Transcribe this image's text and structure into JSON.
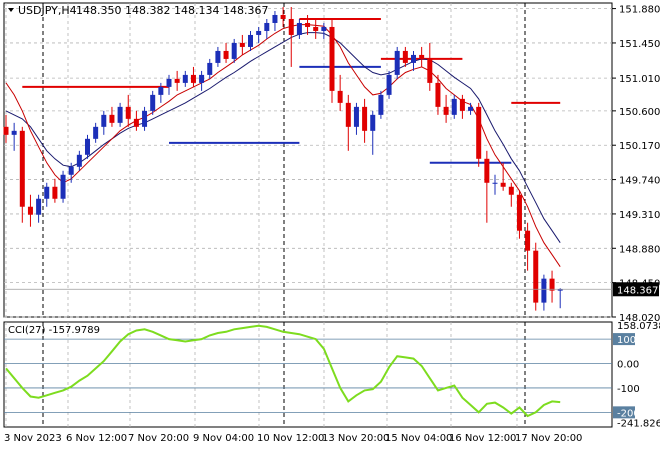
{
  "title": {
    "symbol": "USDJPY,H4",
    "ohlc": "148.350 148.382 148.134 148.367"
  },
  "colors": {
    "background": "#ffffff",
    "grid": "#b4b4b4",
    "bull": "#1c2fb8",
    "bear": "#e00000",
    "ma_fast": "#c80000",
    "ma_slow": "#1a1a6e",
    "support": "#1c2fb8",
    "resistance": "#e00000",
    "cci_line": "#7ddc1f",
    "cci_level": "#5a80a0",
    "current_price_label_bg": "#000000",
    "current_price_label_fg": "#ffffff"
  },
  "price_axis": {
    "labels": [
      "151.880",
      "151.450",
      "151.010",
      "150.600",
      "150.170",
      "149.740",
      "149.310",
      "148.880",
      "148.450",
      "148.020"
    ],
    "current_price": "148.367"
  },
  "indicator": {
    "label": "CCI(27) -157.9789",
    "axis_labels": [
      "158.0738",
      "100",
      "0.00",
      "-100",
      "-200",
      "-241.8263"
    ]
  },
  "time_axis": {
    "labels": [
      "3 Nov 2023",
      "6 Nov 12:00",
      "7 Nov 20:00",
      "9 Nov 04:00",
      "10 Nov 12:00",
      "13 Nov 20:00",
      "15 Nov 04:00",
      "16 Nov 12:00",
      "17 Nov 20:00"
    ]
  },
  "chart_data": {
    "type": "candlestick",
    "symbol": "USDJPY",
    "timeframe": "H4",
    "ylim": [
      148.02,
      151.95
    ],
    "candles": [
      [
        150.4,
        150.55,
        150.2,
        150.3
      ],
      [
        150.3,
        150.45,
        150.1,
        150.35
      ],
      [
        150.35,
        150.4,
        149.2,
        149.4
      ],
      [
        149.4,
        149.55,
        149.15,
        149.3
      ],
      [
        149.3,
        149.55,
        149.2,
        149.5
      ],
      [
        149.5,
        149.7,
        149.4,
        149.65
      ],
      [
        149.65,
        149.75,
        149.45,
        149.5
      ],
      [
        149.5,
        149.85,
        149.45,
        149.8
      ],
      [
        149.8,
        149.95,
        149.7,
        149.9
      ],
      [
        149.9,
        150.1,
        149.85,
        150.05
      ],
      [
        150.05,
        150.3,
        150.0,
        150.25
      ],
      [
        150.25,
        150.45,
        150.2,
        150.4
      ],
      [
        150.4,
        150.6,
        150.3,
        150.55
      ],
      [
        150.55,
        150.65,
        150.4,
        150.45
      ],
      [
        150.45,
        150.7,
        150.4,
        150.65
      ],
      [
        150.65,
        150.8,
        150.4,
        150.5
      ],
      [
        150.5,
        150.6,
        150.35,
        150.4
      ],
      [
        150.4,
        150.65,
        150.35,
        150.6
      ],
      [
        150.6,
        150.85,
        150.55,
        150.8
      ],
      [
        150.8,
        150.95,
        150.7,
        150.9
      ],
      [
        150.9,
        151.05,
        150.8,
        151.0
      ],
      [
        151.0,
        151.1,
        150.85,
        150.95
      ],
      [
        150.95,
        151.1,
        150.9,
        151.05
      ],
      [
        151.05,
        151.15,
        150.9,
        150.95
      ],
      [
        150.95,
        151.1,
        150.85,
        151.05
      ],
      [
        151.05,
        151.25,
        151.0,
        151.2
      ],
      [
        151.2,
        151.4,
        151.15,
        151.35
      ],
      [
        151.35,
        151.45,
        151.2,
        151.25
      ],
      [
        151.25,
        151.5,
        151.2,
        151.45
      ],
      [
        151.45,
        151.55,
        151.3,
        151.4
      ],
      [
        151.4,
        151.6,
        151.35,
        151.55
      ],
      [
        151.55,
        151.65,
        151.45,
        151.6
      ],
      [
        151.6,
        151.75,
        151.5,
        151.7
      ],
      [
        151.7,
        151.85,
        151.6,
        151.8
      ],
      [
        151.8,
        151.9,
        151.65,
        151.75
      ],
      [
        151.75,
        151.9,
        151.15,
        151.55
      ],
      [
        151.55,
        151.75,
        151.5,
        151.7
      ],
      [
        151.7,
        151.8,
        151.55,
        151.65
      ],
      [
        151.65,
        151.75,
        151.5,
        151.6
      ],
      [
        151.6,
        151.7,
        151.5,
        151.65
      ],
      [
        151.65,
        151.75,
        150.7,
        150.85
      ],
      [
        150.85,
        151.05,
        150.6,
        150.7
      ],
      [
        150.7,
        150.8,
        150.1,
        150.4
      ],
      [
        150.4,
        150.7,
        150.3,
        150.65
      ],
      [
        150.65,
        150.75,
        150.2,
        150.35
      ],
      [
        150.35,
        150.6,
        150.05,
        150.55
      ],
      [
        150.55,
        150.85,
        150.5,
        150.8
      ],
      [
        150.8,
        151.1,
        150.75,
        151.05
      ],
      [
        151.05,
        151.4,
        151.0,
        151.35
      ],
      [
        151.35,
        151.4,
        151.15,
        151.2
      ],
      [
        151.2,
        151.35,
        151.1,
        151.3
      ],
      [
        151.3,
        151.4,
        151.15,
        151.25
      ],
      [
        151.25,
        151.45,
        150.85,
        150.95
      ],
      [
        150.95,
        151.05,
        150.55,
        150.65
      ],
      [
        150.65,
        150.8,
        150.45,
        150.55
      ],
      [
        150.55,
        150.8,
        150.5,
        150.75
      ],
      [
        150.75,
        150.8,
        150.5,
        150.6
      ],
      [
        150.6,
        150.7,
        150.55,
        150.65
      ],
      [
        150.65,
        150.7,
        149.9,
        150.0
      ],
      [
        150.0,
        150.1,
        149.2,
        149.7
      ],
      [
        149.7,
        149.8,
        149.55,
        149.7
      ],
      [
        149.7,
        149.95,
        149.6,
        149.65
      ],
      [
        149.65,
        149.7,
        149.4,
        149.55
      ],
      [
        149.55,
        149.6,
        149.0,
        149.1
      ],
      [
        149.1,
        149.2,
        148.6,
        148.85
      ],
      [
        148.85,
        148.95,
        148.1,
        148.2
      ],
      [
        148.2,
        148.55,
        148.1,
        148.5
      ],
      [
        148.5,
        148.6,
        148.2,
        148.35
      ],
      [
        148.35,
        148.38,
        148.13,
        148.37
      ]
    ],
    "ma_fast": [
      150.95,
      150.8,
      150.6,
      150.35,
      150.15,
      149.95,
      149.8,
      149.7,
      149.75,
      149.85,
      149.95,
      150.05,
      150.15,
      150.25,
      150.35,
      150.42,
      150.48,
      150.52,
      150.58,
      150.65,
      150.72,
      150.8,
      150.85,
      150.9,
      150.95,
      151.0,
      151.08,
      151.15,
      151.22,
      151.3,
      151.36,
      151.42,
      151.5,
      151.57,
      151.63,
      151.66,
      151.68,
      151.68,
      151.67,
      151.66,
      151.55,
      151.4,
      151.2,
      151.05,
      150.9,
      150.8,
      150.82,
      150.9,
      151.0,
      151.08,
      151.12,
      151.15,
      151.1,
      151.0,
      150.88,
      150.8,
      150.72,
      150.68,
      150.5,
      150.25,
      150.05,
      149.9,
      149.75,
      149.6,
      149.4,
      149.15,
      148.95,
      148.8,
      148.65
    ],
    "ma_slow": [
      150.6,
      150.55,
      150.5,
      150.4,
      150.25,
      150.1,
      150.0,
      149.92,
      149.9,
      149.95,
      150.02,
      150.1,
      150.18,
      150.25,
      150.32,
      150.38,
      150.42,
      150.45,
      150.5,
      150.55,
      150.6,
      150.65,
      150.7,
      150.76,
      150.82,
      150.88,
      150.95,
      151.02,
      151.08,
      151.15,
      151.22,
      151.28,
      151.34,
      151.4,
      151.46,
      151.52,
      151.56,
      151.58,
      151.58,
      151.57,
      151.52,
      151.45,
      151.35,
      151.25,
      151.15,
      151.08,
      151.05,
      151.07,
      151.12,
      151.17,
      151.22,
      151.25,
      151.24,
      151.18,
      151.1,
      151.02,
      150.95,
      150.88,
      150.75,
      150.55,
      150.35,
      150.18,
      150.0,
      149.85,
      149.65,
      149.45,
      149.25,
      149.1,
      148.95
    ],
    "resistance_segments": [
      {
        "from": 2,
        "to": 20,
        "value": 150.9
      },
      {
        "from": 36,
        "to": 46,
        "value": 151.75
      },
      {
        "from": 46,
        "to": 56,
        "value": 151.25
      },
      {
        "from": 62,
        "to": 68,
        "value": 150.7
      }
    ],
    "support_segments": [
      {
        "from": 20,
        "to": 36,
        "value": 150.2
      },
      {
        "from": 36,
        "to": 46,
        "value": 151.15
      },
      {
        "from": 52,
        "to": 62,
        "value": 149.95
      }
    ],
    "cci": {
      "ylim": [
        -260,
        170
      ],
      "levels": [
        100,
        0,
        -100,
        -200
      ],
      "values": [
        -20,
        -60,
        -100,
        -135,
        -140,
        -130,
        -120,
        -110,
        -95,
        -70,
        -50,
        -20,
        10,
        50,
        90,
        120,
        135,
        140,
        130,
        115,
        100,
        95,
        90,
        95,
        100,
        115,
        125,
        130,
        140,
        145,
        150,
        155,
        150,
        140,
        130,
        125,
        120,
        110,
        100,
        60,
        -20,
        -100,
        -155,
        -130,
        -110,
        -105,
        -75,
        -15,
        30,
        25,
        20,
        -10,
        -60,
        -110,
        -100,
        -90,
        -140,
        -170,
        -200,
        -165,
        -160,
        -180,
        -205,
        -180,
        -215,
        -200,
        -170,
        -155,
        -158
      ]
    }
  }
}
